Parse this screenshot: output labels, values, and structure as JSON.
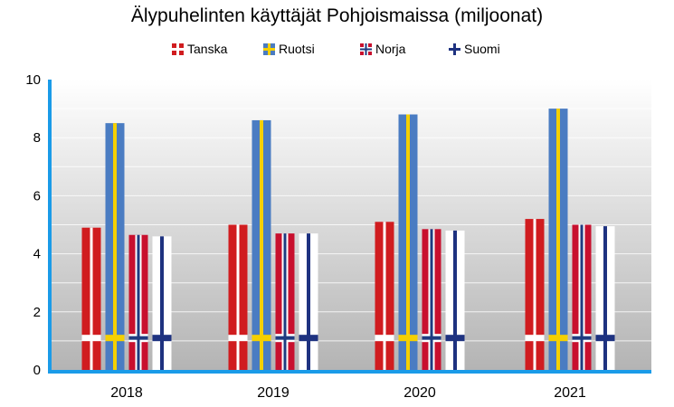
{
  "chart_data": {
    "type": "bar",
    "title": "Älypuhelinten käyttäjät Pohjoismaissa (miljoonat)",
    "xlabel": "",
    "ylabel": "",
    "categories": [
      "2018",
      "2019",
      "2020",
      "2021"
    ],
    "series": [
      {
        "name": "Tanska",
        "flag": "denmark",
        "values": [
          4.9,
          5.0,
          5.1,
          5.2
        ]
      },
      {
        "name": "Ruotsi",
        "flag": "sweden",
        "values": [
          8.5,
          8.6,
          8.8,
          9.0
        ]
      },
      {
        "name": "Norja",
        "flag": "norway",
        "values": [
          4.65,
          4.7,
          4.85,
          5.0
        ]
      },
      {
        "name": "Suomi",
        "flag": "finland",
        "values": [
          4.6,
          4.7,
          4.8,
          4.95
        ]
      }
    ],
    "ylim": [
      0,
      10
    ],
    "yticks": [
      0,
      2,
      4,
      6,
      8,
      10
    ],
    "grid": true,
    "legend": "top-center",
    "colors": {
      "denmark_red": "#d01c1f",
      "sweden_blue": "#4a7cc2",
      "sweden_yellow": "#f5d000",
      "norway_red": "#c8102e",
      "norway_blue": "#1f3b80",
      "finland_blue": "#1e3280",
      "axis": "#1a9be8"
    }
  }
}
